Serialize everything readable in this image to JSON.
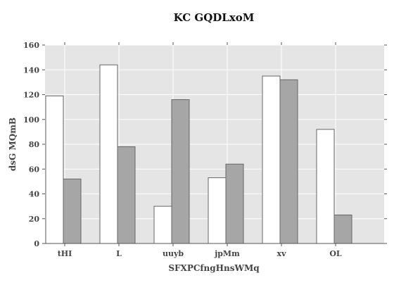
{
  "chart_data": {
    "type": "bar",
    "title": "KC GQDLxoM",
    "xlabel": "SFXPCfngHnsWMq",
    "ylabel": "dsG MQmB",
    "categories": [
      "tHI",
      "L",
      "uuyb",
      "jpMm",
      "xv",
      "OL"
    ],
    "series": [
      {
        "values": [
          119,
          144,
          30,
          53,
          135,
          92
        ],
        "color": "#ffffff"
      },
      {
        "values": [
          52,
          78,
          116,
          64,
          132,
          23
        ],
        "color": "#a6a6a6"
      }
    ],
    "ylim": [
      0,
      160
    ],
    "yticks": [
      0,
      20,
      40,
      60,
      80,
      100,
      120,
      140,
      160
    ],
    "grid": true,
    "colors": {
      "plot_bg": "#e5e5e5",
      "grid": "#ffffff",
      "bar_edge": "#666666"
    }
  }
}
